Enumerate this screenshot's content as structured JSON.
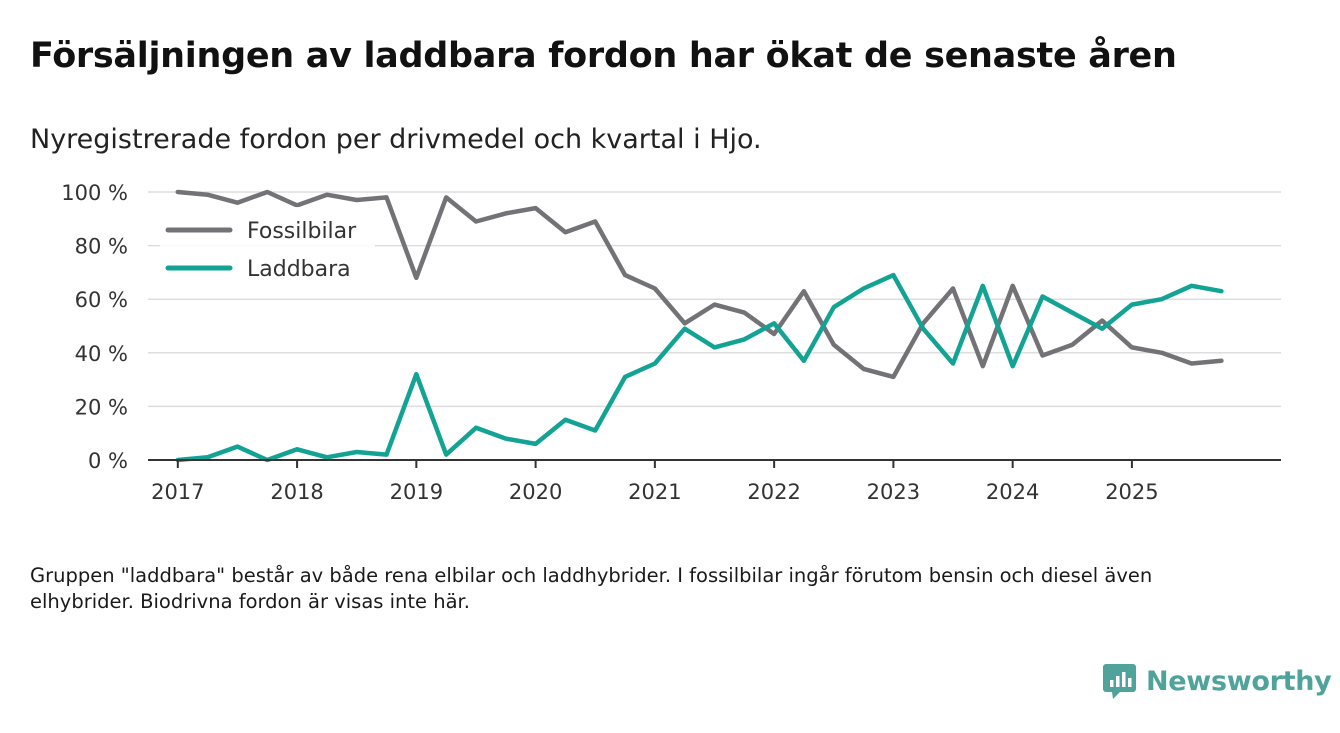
{
  "title": "Försäljningen av laddbara fordon har ökat de senaste åren",
  "subtitle": "Nyregistrerade fordon per drivmedel och kvartal i Hjo.",
  "note": "Gruppen \"laddbara\" består av både rena elbilar och laddhybrider. I fossilbilar ingår förutom bensin och diesel även elhybrider. Biodrivna fordon är visas inte här.",
  "brand": {
    "name": "Newsworthy",
    "icon": "bar-chart-logo-icon",
    "color": "#4fa39b"
  },
  "chart_data": {
    "type": "line",
    "title": "Försäljningen av laddbara fordon har ökat de senaste åren",
    "xlabel": "",
    "ylabel": "",
    "ylim": [
      0,
      100
    ],
    "yticks": [
      0,
      20,
      40,
      60,
      80,
      100
    ],
    "ytick_labels": [
      "0 %",
      "20 %",
      "40 %",
      "60 %",
      "80 %",
      "100 %"
    ],
    "xlim": [
      2016.75,
      2026.25
    ],
    "xticks": [
      2017,
      2018,
      2019,
      2020,
      2021,
      2022,
      2023,
      2024,
      2025
    ],
    "xtick_labels": [
      "2017",
      "2018",
      "2019",
      "2020",
      "2021",
      "2022",
      "2023",
      "2024",
      "2025"
    ],
    "grid": true,
    "legend_position": "top-left",
    "x": [
      2017,
      2017.25,
      2017.5,
      2017.75,
      2018,
      2018.25,
      2018.5,
      2018.75,
      2019,
      2019.25,
      2019.5,
      2019.75,
      2020,
      2020.25,
      2020.5,
      2020.75,
      2021,
      2021.25,
      2021.5,
      2021.75,
      2022,
      2022.25,
      2022.5,
      2022.75,
      2023,
      2023.25,
      2023.5,
      2023.75,
      2024,
      2024.25,
      2024.5,
      2024.75,
      2025,
      2025.25,
      2025.5,
      2025.75
    ],
    "series": [
      {
        "name": "Fossilbilar",
        "color": "#737276",
        "values": [
          100,
          99,
          96,
          100,
          95,
          99,
          97,
          98,
          68,
          98,
          89,
          92,
          94,
          85,
          89,
          69,
          64,
          51,
          58,
          55,
          47,
          63,
          43,
          34,
          31,
          51,
          64,
          35,
          65,
          39,
          43,
          52,
          42,
          40,
          36,
          37
        ]
      },
      {
        "name": "Laddbara",
        "color": "#12a394",
        "values": [
          0,
          1,
          5,
          0,
          4,
          1,
          3,
          2,
          32,
          2,
          12,
          8,
          6,
          15,
          11,
          31,
          36,
          49,
          42,
          45,
          51,
          37,
          57,
          64,
          69,
          49,
          36,
          65,
          35,
          61,
          55,
          49,
          58,
          60,
          65,
          63
        ]
      }
    ]
  }
}
